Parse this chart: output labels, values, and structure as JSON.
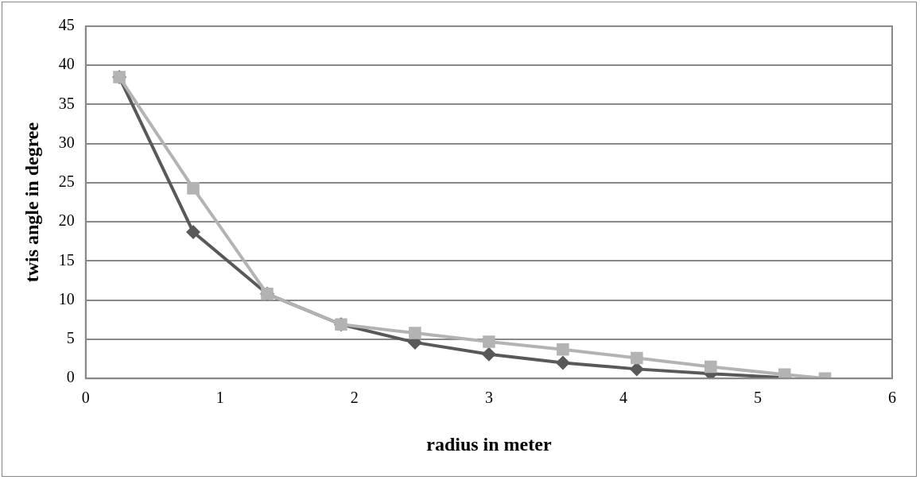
{
  "chart_data": {
    "type": "line",
    "xlabel": "radius in meter",
    "ylabel": "twis angle in degree",
    "x": [
      0.25,
      0.8,
      1.35,
      1.9,
      2.45,
      3.0,
      3.55,
      4.1,
      4.65,
      5.2,
      5.5
    ],
    "series": [
      {
        "color": "#595959",
        "marker": "diamond",
        "values": [
          38.5,
          18.7,
          10.8,
          6.9,
          4.6,
          3.1,
          2.0,
          1.2,
          0.6,
          0.1,
          null
        ]
      },
      {
        "color": "#b3b3b3",
        "marker": "square",
        "values": [
          38.5,
          24.3,
          10.8,
          6.9,
          5.8,
          4.7,
          3.7,
          2.6,
          1.5,
          0.5,
          0
        ]
      }
    ],
    "xlim": [
      0,
      6
    ],
    "xticks": [
      0,
      1,
      2,
      3,
      4,
      5,
      6
    ],
    "ylim": [
      0,
      45
    ],
    "yticks": [
      0,
      5,
      10,
      15,
      20,
      25,
      30,
      35,
      40,
      45
    ],
    "grid": "y",
    "legend": false,
    "line_style": "solid"
  }
}
